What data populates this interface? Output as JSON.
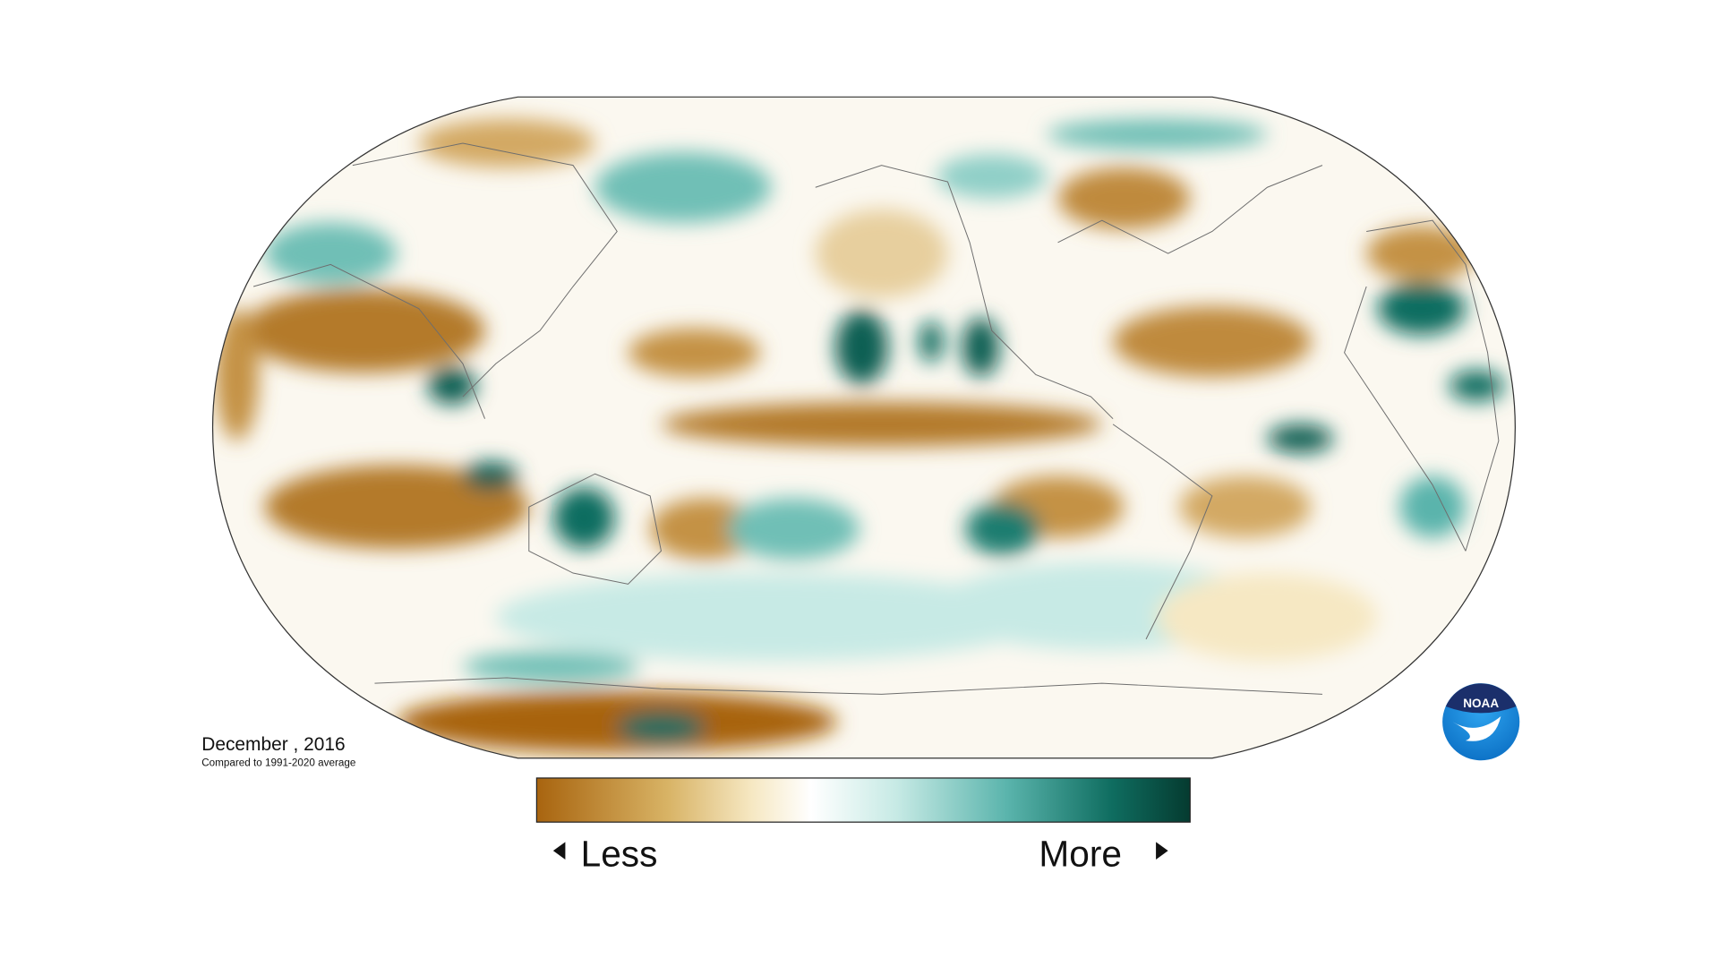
{
  "date_label": "December , 2016",
  "subtitle": "Compared to 1991-2020 average",
  "legend": {
    "less": "Less",
    "more": "More"
  },
  "logo": "NOAA"
}
